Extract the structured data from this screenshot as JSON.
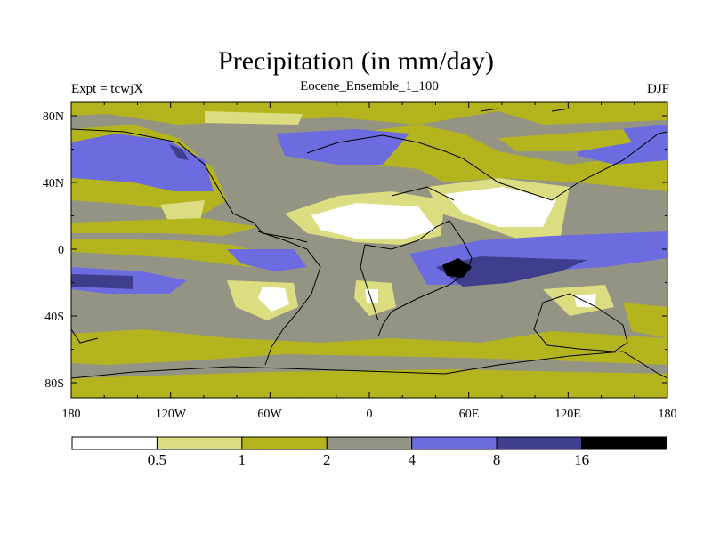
{
  "title": "Precipitation (in mm/day)",
  "left_title": "Expt = tcwjX",
  "center_title": "Eocene_Ensemble_1_100",
  "right_title": "DJF",
  "lat_labels": [
    "80N",
    "40N",
    "0",
    "40S",
    "80S"
  ],
  "lon_labels": [
    "180",
    "120W",
    "60W",
    "0",
    "60E",
    "120E",
    "180"
  ],
  "colorbar": {
    "colors": [
      "#ffffff",
      "#dcdc80",
      "#b4b41e",
      "#949484",
      "#6c6ce0",
      "#3e3e8c",
      "#000000"
    ],
    "labels": [
      "0.5",
      "1",
      "2",
      "4",
      "8",
      "16"
    ]
  }
}
